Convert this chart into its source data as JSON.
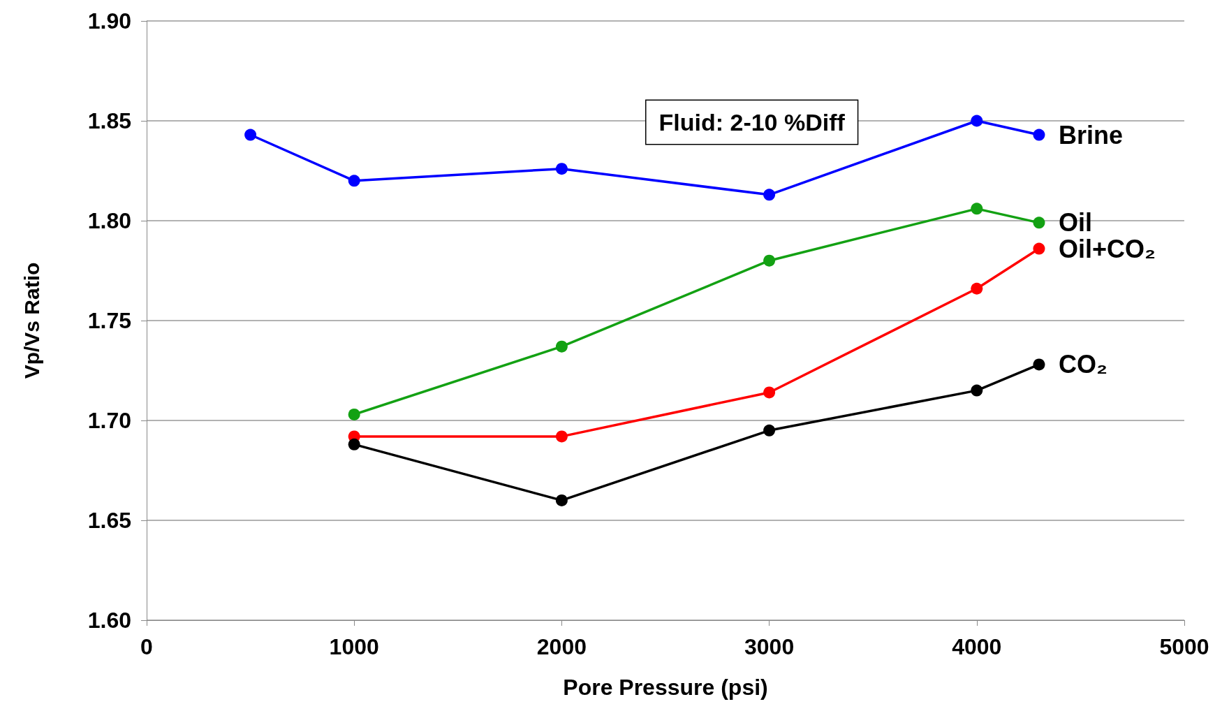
{
  "chart_data": {
    "type": "line",
    "xlabel": "Pore Pressure (psi)",
    "ylabel": "Vp/Vs Ratio",
    "annotations": [
      "Fluid: 2-10 %Diff"
    ],
    "series": [
      {
        "name": "Brine",
        "color": "#0000ff",
        "x": [
          500,
          1000,
          2000,
          3000,
          4000,
          4300
        ],
        "values": [
          1.843,
          1.82,
          1.826,
          1.813,
          1.85,
          1.843
        ]
      },
      {
        "name": "Oil",
        "color": "#13a113",
        "x": [
          1000,
          2000,
          3000,
          4000,
          4300
        ],
        "values": [
          1.703,
          1.737,
          1.78,
          1.806,
          1.799
        ]
      },
      {
        "name": "Oil+CO₂",
        "color": "#ff0000",
        "x": [
          1000,
          2000,
          3000,
          4000,
          4300
        ],
        "values": [
          1.692,
          1.692,
          1.714,
          1.766,
          1.786
        ]
      },
      {
        "name": "CO₂",
        "color": "#000000",
        "x": [
          1000,
          2000,
          3000,
          4000,
          4300
        ],
        "values": [
          1.688,
          1.66,
          1.695,
          1.715,
          1.728
        ]
      }
    ],
    "xlim": [
      0,
      5000
    ],
    "xticks": [
      0,
      1000,
      2000,
      3000,
      4000,
      5000
    ],
    "ylim": [
      1.6,
      1.9
    ],
    "yticks": [
      {
        "value": 1.6,
        "label": "1.60"
      },
      {
        "value": 1.65,
        "label": "1.65"
      },
      {
        "value": 1.7,
        "label": "1.70"
      },
      {
        "value": 1.75,
        "label": "1.75"
      },
      {
        "value": 1.8,
        "label": "1.80"
      },
      {
        "value": 1.85,
        "label": "1.85"
      },
      {
        "value": 1.9,
        "label": "1.90"
      }
    ],
    "grid": "y",
    "marker": "circle",
    "line_style": "solid",
    "legend": false
  }
}
